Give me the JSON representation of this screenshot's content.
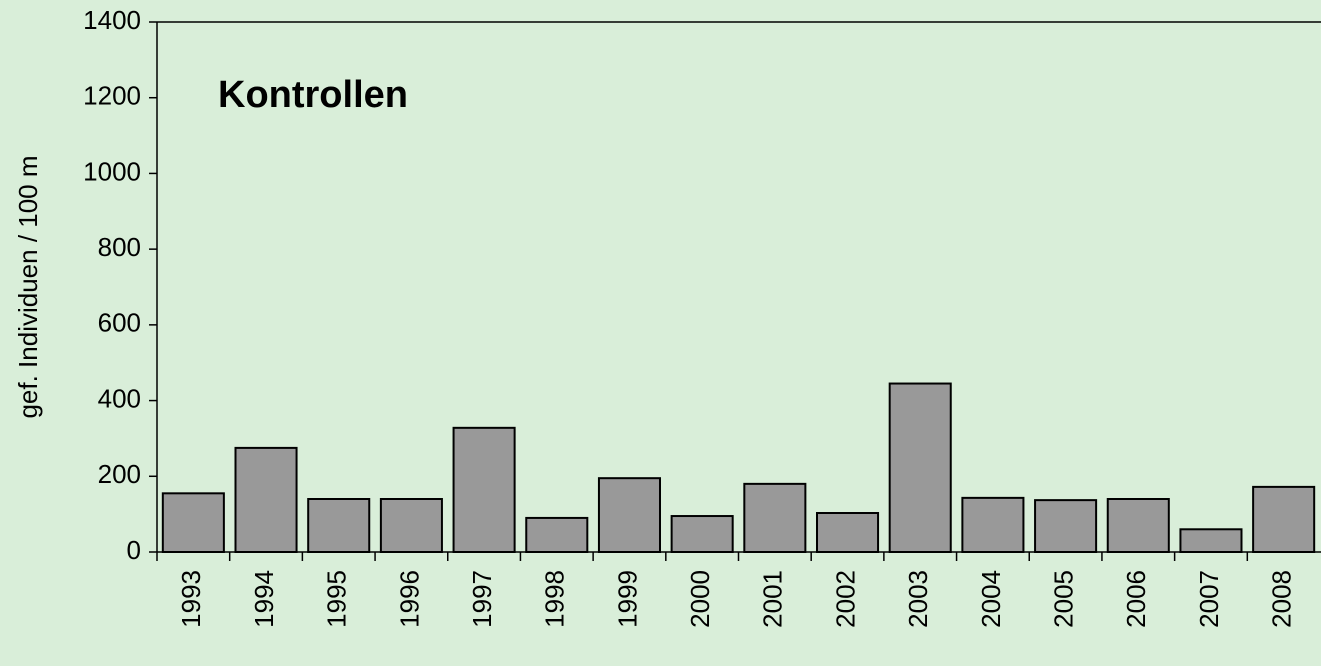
{
  "chart_data": {
    "type": "bar",
    "title": "Kontrollen",
    "y_label": "gef. Individuen / 100 m",
    "categories": [
      "1993",
      "1994",
      "1995",
      "1996",
      "1997",
      "1998",
      "1999",
      "2000",
      "2001",
      "2002",
      "2003",
      "2004",
      "2005",
      "2006",
      "2007",
      "2008"
    ],
    "values": [
      155,
      275,
      140,
      140,
      328,
      90,
      195,
      95,
      180,
      103,
      445,
      143,
      137,
      140,
      60,
      172
    ],
    "color": "#999999",
    "ylim": [
      0,
      1400
    ],
    "yticks": [
      0,
      200,
      400,
      600,
      800,
      1000,
      1200,
      1400
    ],
    "grid": false
  }
}
